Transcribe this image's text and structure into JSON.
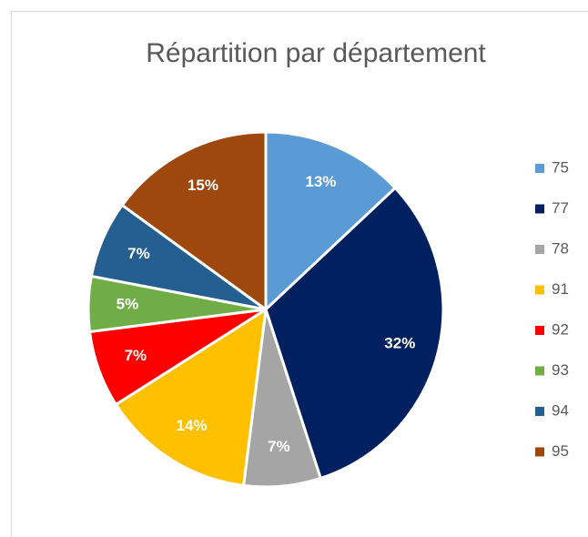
{
  "chart_data": {
    "type": "pie",
    "title": "Répartition par département",
    "categories": [
      "75",
      "77",
      "78",
      "91",
      "92",
      "93",
      "94",
      "95"
    ],
    "values": [
      13,
      32,
      7,
      14,
      7,
      5,
      7,
      15
    ],
    "value_labels": [
      "13%",
      "32%",
      "7%",
      "14%",
      "7%",
      "5%",
      "7%",
      "15%"
    ],
    "colors": [
      "#5b9bd5",
      "#002060",
      "#a5a5a5",
      "#ffc000",
      "#ff0000",
      "#70ad47",
      "#255e91",
      "#9e480e"
    ],
    "legend": "right"
  }
}
